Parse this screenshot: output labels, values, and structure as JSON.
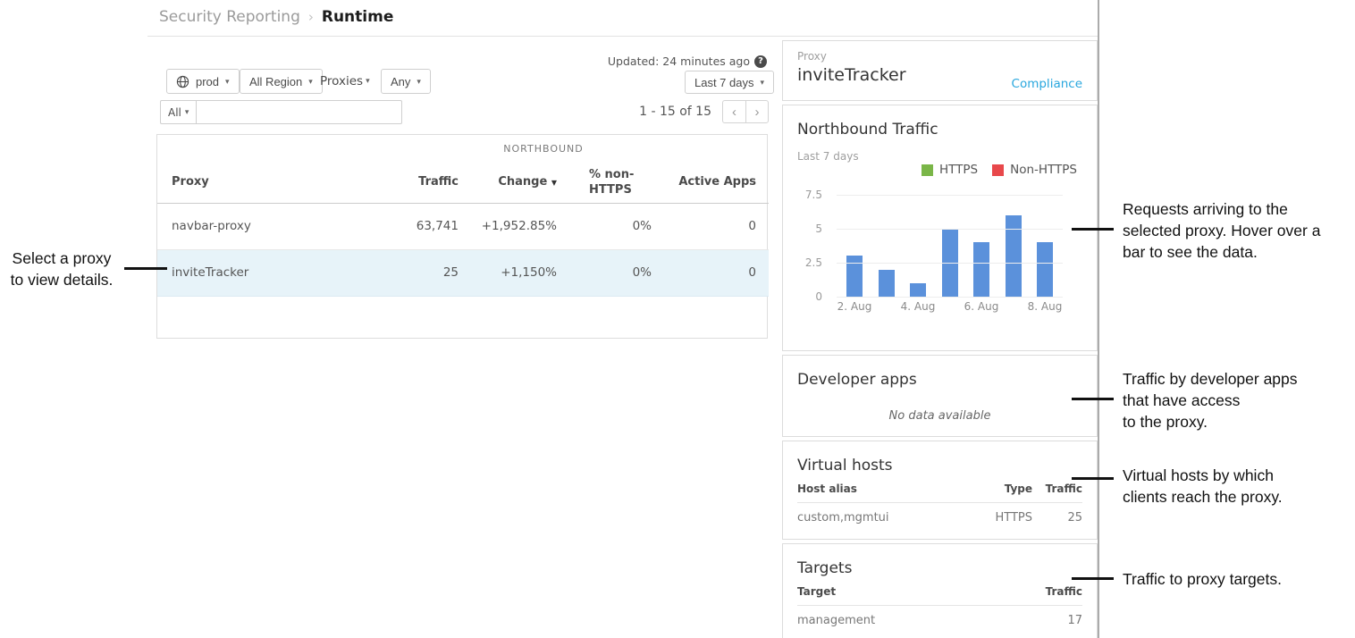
{
  "breadcrumb": {
    "section": "Security Reporting",
    "separator": "›",
    "page": "Runtime"
  },
  "toolbar": {
    "env_label": "prod",
    "region_label": "All Region",
    "proxies_label": "Proxies",
    "any_label": "Any",
    "updated_text": "Updated: 24 minutes ago",
    "help_glyph": "?",
    "range_label": "Last 7 days",
    "filter_scope_label": "All",
    "search_value": "",
    "pagination_text": "1 - 15 of 15"
  },
  "table": {
    "group_header": "NORTHBOUND",
    "columns": {
      "proxy": "Proxy",
      "traffic": "Traffic",
      "change": "Change",
      "non_https": "% non-\nHTTPS",
      "active_apps": "Active Apps"
    },
    "sort_indicator": "▼",
    "rows": [
      {
        "proxy": "navbar-proxy",
        "traffic": "63,741",
        "change": "+1,952.85%",
        "non_https": "0%",
        "active_apps": "0"
      },
      {
        "proxy": "inviteTracker",
        "traffic": "25",
        "change": "+1,150%",
        "non_https": "0%",
        "active_apps": "0"
      }
    ]
  },
  "detail": {
    "proxy_label": "Proxy",
    "proxy_name": "inviteTracker",
    "compliance_link": "Compliance",
    "traffic_section": {
      "title": "Northbound Traffic",
      "subtitle": "Last 7 days"
    },
    "developer_apps": {
      "title": "Developer apps",
      "empty_text": "No data available"
    },
    "virtual_hosts": {
      "title": "Virtual hosts",
      "columns": {
        "host_alias": "Host alias",
        "type": "Type",
        "traffic": "Traffic"
      },
      "rows": [
        {
          "host_alias": "custom,mgmtui",
          "type": "HTTPS",
          "traffic": "25"
        }
      ]
    },
    "targets": {
      "title": "Targets",
      "columns": {
        "target": "Target",
        "traffic": "Traffic"
      },
      "rows": [
        {
          "target": "management",
          "traffic": "17"
        }
      ]
    }
  },
  "chart_data": {
    "type": "bar",
    "title": "Northbound Traffic",
    "subtitle": "Last 7 days",
    "x": [
      "2. Aug",
      "3. Aug",
      "4. Aug",
      "5. Aug",
      "6. Aug",
      "7. Aug",
      "8. Aug"
    ],
    "x_tick_labels": [
      "2. Aug",
      "4. Aug",
      "6. Aug",
      "8. Aug"
    ],
    "values": [
      3,
      2,
      1,
      5,
      4,
      6,
      4
    ],
    "series_name": "HTTPS",
    "y_ticks": [
      0,
      2.5,
      5,
      7.5
    ],
    "ylim": [
      0,
      7.5
    ],
    "grid": true,
    "legend": [
      {
        "label": "HTTPS",
        "color": "#7ab648"
      },
      {
        "label": "Non-HTTPS",
        "color": "#e8484b"
      }
    ],
    "legend_position": "top-right",
    "bar_color": "#5b91db"
  },
  "annotations": {
    "select_proxy": "Select a proxy\nto view details.",
    "requests": "Requests arriving to the\nselected proxy. Hover over a\nbar to see the data.",
    "developer_apps": "Traffic by developer apps\n that have access\n to the proxy.",
    "virtual_hosts": "Virtual hosts by which\nclients reach the proxy.",
    "targets": "Traffic to proxy targets."
  },
  "colors": {
    "accent_link": "#29a7de",
    "bar_blue": "#5b91db",
    "legend_green": "#7ab648",
    "legend_red": "#e8484b",
    "selected_row_bg": "#e7f3f9"
  }
}
